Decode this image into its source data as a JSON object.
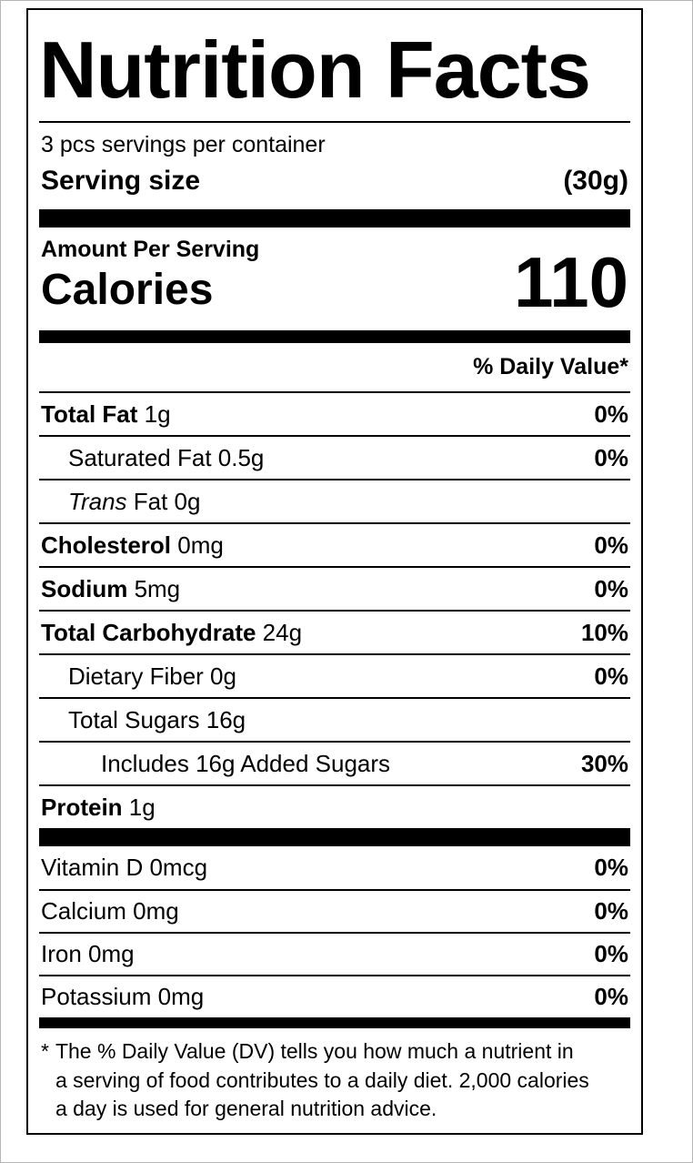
{
  "label": {
    "title": "Nutrition Facts",
    "servings_per_container": "3 pcs servings per container",
    "serving_size": {
      "label": "Serving size",
      "value": "(30g)"
    },
    "amount_per_serving": "Amount Per Serving",
    "calories": {
      "label": "Calories",
      "value": "110"
    },
    "daily_value_header": "% Daily Value*",
    "nutrients": [
      {
        "bold": "Total Fat",
        "text": " 1g",
        "dv": "0%"
      },
      {
        "text": "Saturated Fat 0.5g",
        "dv": "0%"
      },
      {
        "italic": "Trans",
        "text": " Fat 0g",
        "dv": ""
      },
      {
        "bold": "Cholesterol",
        "text": " 0mg",
        "dv": "0%"
      },
      {
        "bold": "Sodium",
        "text": " 5mg",
        "dv": "0%"
      },
      {
        "bold": "Total Carbohydrate",
        "text": " 24g",
        "dv": "10%"
      },
      {
        "text": "Dietary Fiber 0g",
        "dv": "0%"
      },
      {
        "text": "Total Sugars 16g",
        "dv": ""
      },
      {
        "text": "Includes 16g Added Sugars",
        "dv": "30%"
      },
      {
        "bold": "Protein",
        "text": " 1g",
        "dv": ""
      }
    ],
    "vitamins": [
      {
        "text": "Vitamin D 0mcg",
        "dv": "0%"
      },
      {
        "text": "Calcium 0mg",
        "dv": "0%"
      },
      {
        "text": "Iron 0mg",
        "dv": "0%"
      },
      {
        "text": "Potassium 0mg",
        "dv": "0%"
      }
    ],
    "footnote": {
      "asterisk": "*",
      "lines": [
        "The % Daily Value (DV) tells you how much a nutrient in",
        "a serving of food contributes to a daily diet. 2,000 calories",
        "a day is used for general nutrition advice."
      ]
    }
  }
}
